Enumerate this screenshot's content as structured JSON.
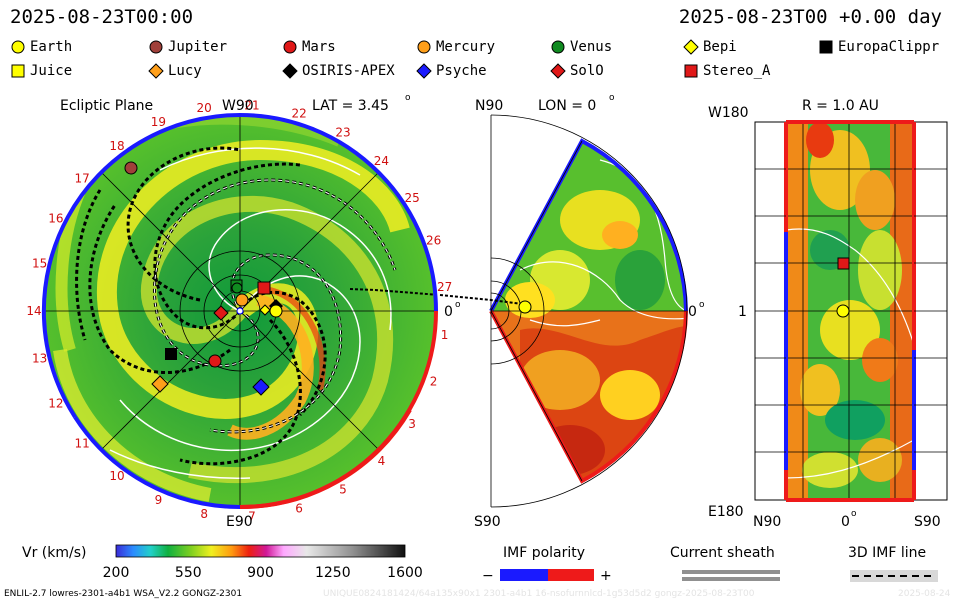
{
  "header": {
    "left_time": "2025-08-23T00:00",
    "right_time": "2025-08-23T00 +0.00 day"
  },
  "legend": [
    {
      "name": "Earth",
      "shape": "circle",
      "color": "#ffff00"
    },
    {
      "name": "Jupiter",
      "shape": "circle",
      "color": "#a0403a"
    },
    {
      "name": "Mars",
      "shape": "circle",
      "color": "#e01818"
    },
    {
      "name": "Mercury",
      "shape": "circle",
      "color": "#ff9f1a"
    },
    {
      "name": "Venus",
      "shape": "circle",
      "color": "#108a20"
    },
    {
      "name": "Bepi",
      "shape": "diamond",
      "color": "#ffff00"
    },
    {
      "name": "EuropaClippr",
      "shape": "square",
      "color": "#000000"
    },
    {
      "name": "Juice",
      "shape": "square",
      "color": "#ffff00"
    },
    {
      "name": "Lucy",
      "shape": "diamond",
      "color": "#ff9f1a"
    },
    {
      "name": "OSIRIS-APEX",
      "shape": "diamond",
      "color": "#000000"
    },
    {
      "name": "Psyche",
      "shape": "diamond",
      "color": "#1a1aff"
    },
    {
      "name": "SolO",
      "shape": "diamond",
      "color": "#e01818"
    },
    {
      "name": "Stereo_A",
      "shape": "square",
      "color": "#e01818"
    }
  ],
  "ecliptic": {
    "title": "Ecliptic Plane",
    "top_label": "W90",
    "lat_label": "LAT = 3.45",
    "deg": "o",
    "right_label": "0",
    "bottom_label": "E90",
    "hour_labels": [
      "20",
      "21",
      "22",
      "23",
      "24",
      "25",
      "26",
      "27",
      "1",
      "2",
      "3",
      "4",
      "5",
      "6",
      "7",
      "8",
      "9",
      "10",
      "11",
      "12",
      "13",
      "14",
      "15",
      "16",
      "17",
      "18",
      "19"
    ]
  },
  "meridional": {
    "top_label": "N90",
    "lon_label": "LON = 0",
    "deg": "o",
    "right_label": "0",
    "bottom_label": "S90"
  },
  "sphere": {
    "top_left": "W180",
    "r_label": "R = 1.0 AU",
    "mid_left": "1",
    "bottom_left": "E180",
    "bottom_n": "N90",
    "bottom_zero": "0",
    "bottom_s": "S90",
    "deg": "o"
  },
  "colorbar": {
    "title": "Vr (km/s)",
    "ticks": [
      "200",
      "550",
      "900",
      "1250",
      "1600"
    ]
  },
  "imf": {
    "title": "IMF polarity",
    "minus": "−",
    "plus": "+"
  },
  "sheath": {
    "title": "Current sheath"
  },
  "line3d": {
    "title": "3D IMF line"
  },
  "footer": {
    "left": "ENLIL-2.7 lowres-2301-a4b1 WSA_V2.2 GONGZ-2301",
    "center": "UNIQUE0824181424/64a135x90x1 2301-a4b1 16-nsofurnnlcd-1g53d5d2 gongz-2025-08-23T00",
    "right": "2025-08-24"
  }
}
